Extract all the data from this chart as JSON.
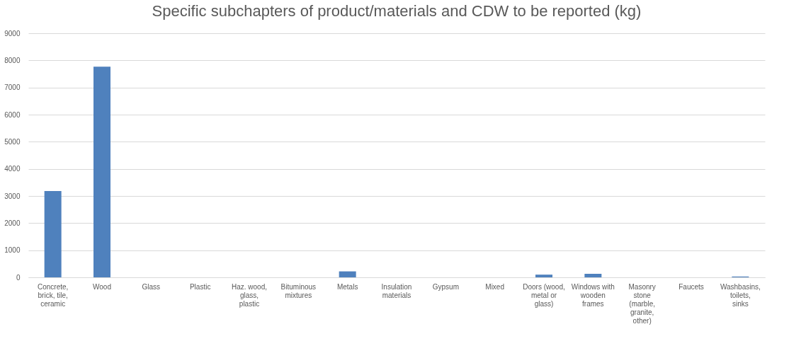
{
  "chart_data": {
    "type": "bar",
    "title": "Specific subchapters of product/materials and CDW to be reported (kg)",
    "categories": [
      "Concrete, brick, tile, ceramic",
      "Wood",
      "Glass",
      "Plastic",
      "Haz. wood, glass, plastic",
      "Bituminous mixtures",
      "Metals",
      "Insulation materials",
      "Gypsum",
      "Mixed",
      "Doors (wood, metal or glass)",
      "Windows with wooden frames",
      "Masonry stone (marble, granite, other)",
      "Faucets",
      "Washbasins, toilets, sinks"
    ],
    "values": [
      3180,
      7770,
      0,
      0,
      0,
      0,
      220,
      0,
      0,
      0,
      100,
      130,
      0,
      0,
      30
    ],
    "color": "#4f81bd",
    "ylim": [
      0,
      9000
    ],
    "yticks": [
      0,
      1000,
      2000,
      3000,
      4000,
      5000,
      6000,
      7000,
      8000,
      9000
    ],
    "grid": "y"
  }
}
